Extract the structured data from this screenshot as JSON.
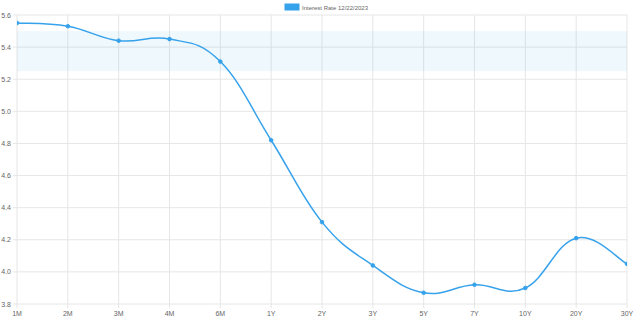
{
  "chart_data": {
    "type": "line",
    "categories": [
      "1M",
      "2M",
      "3M",
      "4M",
      "6M",
      "1Y",
      "2Y",
      "3Y",
      "5Y",
      "7Y",
      "10Y",
      "20Y",
      "30Y"
    ],
    "series": [
      {
        "name": "Interest Rate 12/22/2023",
        "color": "#36a2eb",
        "marker": "circle",
        "values": [
          5.55,
          5.53,
          5.44,
          5.45,
          5.31,
          4.82,
          4.31,
          4.04,
          3.87,
          3.92,
          3.9,
          4.21,
          4.05
        ]
      }
    ],
    "band": [
      5.25,
      5.5
    ],
    "ylim": [
      3.8,
      5.6
    ],
    "yticks": [
      {
        "value": 3.8,
        "label": "3.8"
      },
      {
        "value": 4.0,
        "label": "4.0"
      },
      {
        "value": 4.2,
        "label": "4.2"
      },
      {
        "value": 4.4,
        "label": "4.4"
      },
      {
        "value": 4.6,
        "label": "4.6"
      },
      {
        "value": 4.8,
        "label": "4.8"
      },
      {
        "value": 5.0,
        "label": "5.0"
      },
      {
        "value": 5.2,
        "label": "5.2"
      },
      {
        "value": 5.4,
        "label": "5.4"
      },
      {
        "value": 5.6,
        "label": "5.6"
      }
    ],
    "grid": true,
    "legend": "top"
  }
}
